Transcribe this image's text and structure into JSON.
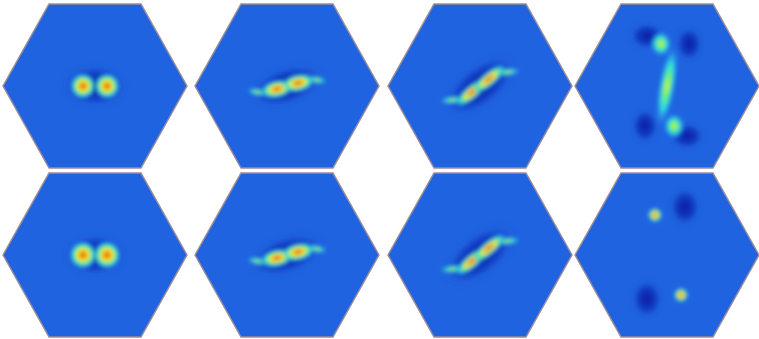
{
  "colormap": {
    "background": "#1f63e0",
    "border": "#9a8c9a",
    "deep_blue": "#0a1aa0",
    "light_blue": "#3a9cf0",
    "cyan": "#2ae0e8",
    "green": "#6ef06a",
    "yellow": "#f4f018",
    "orange": "#f8a020",
    "red": "#d81a10"
  },
  "figure": {
    "rows": 2,
    "columns": 4,
    "panels": [
      {
        "id": "r1c1",
        "stage": "two-separate-vortices"
      },
      {
        "id": "r1c2",
        "stage": "vortices-beginning-to-merge"
      },
      {
        "id": "r1c3",
        "stage": "stretched-filament-pair"
      },
      {
        "id": "r1c4",
        "stage": "split-weak-vortices"
      },
      {
        "id": "r2c1",
        "stage": "two-separate-vortices"
      },
      {
        "id": "r2c2",
        "stage": "vortices-beginning-to-merge"
      },
      {
        "id": "r2c3",
        "stage": "stretched-filament-pair"
      },
      {
        "id": "r2c4",
        "stage": "split-concentrated-vortices"
      }
    ]
  }
}
